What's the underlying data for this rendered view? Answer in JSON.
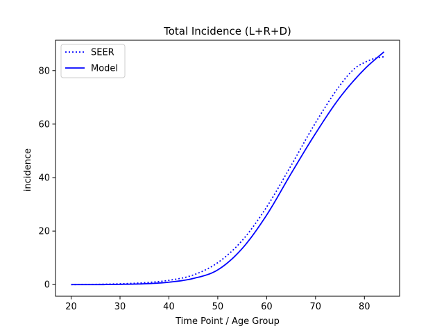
{
  "chart_data": {
    "type": "line",
    "title": "Total Incidence (L+R+D)",
    "xlabel": "Time Point / Age Group",
    "ylabel": "incidence",
    "xlim": [
      16.8,
      87.2
    ],
    "ylim": [
      -4.35,
      91.35
    ],
    "xticks": [
      20,
      30,
      40,
      50,
      60,
      70,
      80
    ],
    "yticks": [
      0,
      20,
      40,
      60,
      80
    ],
    "grid": false,
    "legend_position": "top-left",
    "series": [
      {
        "name": "SEER",
        "style": "dotted",
        "color": "#0000ff",
        "x": [
          20,
          25,
          30,
          35,
          40,
          45,
          50,
          55,
          60,
          65,
          70,
          75,
          78,
          80,
          82,
          84
        ],
        "y": [
          0.0,
          0.1,
          0.3,
          0.7,
          1.6,
          3.6,
          8.2,
          16.5,
          29.0,
          44.5,
          60.5,
          74.5,
          80.8,
          83.0,
          84.5,
          85.2
        ]
      },
      {
        "name": "Model",
        "style": "solid",
        "color": "#0000ff",
        "x": [
          20,
          25,
          30,
          35,
          40,
          45,
          50,
          55,
          60,
          65,
          70,
          75,
          80,
          84
        ],
        "y": [
          0.0,
          0.0,
          0.1,
          0.3,
          0.9,
          2.3,
          5.5,
          13.5,
          26.0,
          41.5,
          56.5,
          70.0,
          80.5,
          87.0
        ]
      }
    ]
  }
}
